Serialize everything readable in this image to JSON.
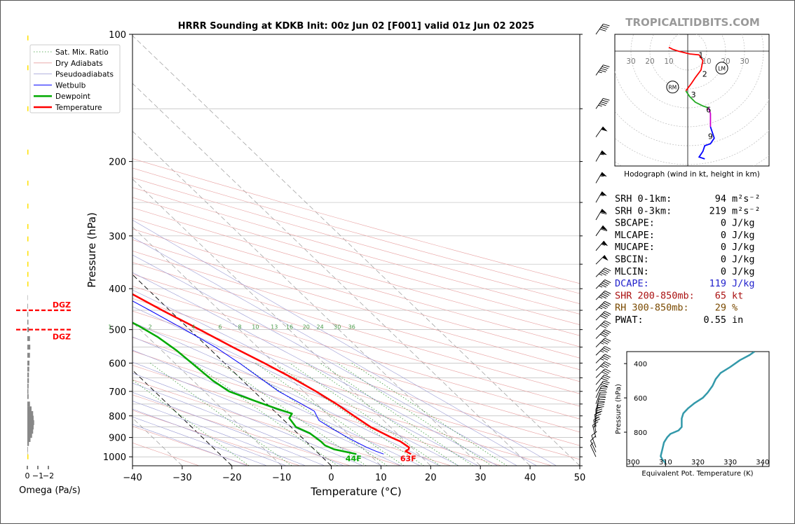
{
  "chart_data": {
    "type": "line",
    "title": "HRRR Sounding at KDKB Init: 00z Jun 02 [F001] valid 01z Jun 02 2025",
    "brand": "TROPICALTIDBITS.COM",
    "xlabel": "Temperature (°C)",
    "ylabel": "Pressure (hPa)",
    "xlim": [
      -40,
      50
    ],
    "ylim": [
      1050,
      100
    ],
    "x_ticks": [
      "−40",
      "−30",
      "−20",
      "−10",
      "0",
      "10",
      "20",
      "30",
      "40",
      "50"
    ],
    "x_tick_values": [
      -40,
      -30,
      -20,
      -10,
      0,
      10,
      20,
      30,
      40,
      50
    ],
    "y_ticks": [
      "100",
      "200",
      "300",
      "400",
      "500",
      "600",
      "700",
      "800",
      "900",
      "1000"
    ],
    "y_tick_values": [
      100,
      200,
      300,
      400,
      500,
      600,
      700,
      800,
      900,
      1000
    ],
    "mixing_ratio_labels": [
      "1",
      "2",
      "4",
      "6",
      "8",
      "10",
      "13",
      "16",
      "20",
      "24",
      "30",
      "36"
    ],
    "mixing_ratio_values": [
      1,
      2,
      4,
      6,
      8,
      10,
      13,
      16,
      20,
      24,
      30,
      36
    ],
    "legend": [
      "Sat. Mix. Ratio",
      "Dry Adiabats",
      "Pseudoadiabats",
      "Wetbulb",
      "Dewpoint",
      "Temperature"
    ],
    "surface_dewpoint_label": "44F",
    "surface_temp_label": "63F",
    "series": [
      {
        "name": "Temperature",
        "color": "#ff0000",
        "points": [
          [
            18.5,
            985
          ],
          [
            18,
            970
          ],
          [
            19,
            960
          ],
          [
            19.5,
            950
          ],
          [
            19,
            920
          ],
          [
            18,
            900
          ],
          [
            16,
            850
          ],
          [
            15,
            800
          ],
          [
            14,
            750
          ],
          [
            12.5,
            700
          ],
          [
            10.5,
            650
          ],
          [
            8,
            600
          ],
          [
            5,
            550
          ],
          [
            2,
            500
          ],
          [
            -1.5,
            450
          ],
          [
            -5,
            400
          ],
          [
            -9,
            350
          ],
          [
            -13,
            300
          ],
          [
            -16,
            270
          ],
          [
            -17,
            250
          ],
          [
            -16.5,
            230
          ],
          [
            -14.5,
            205
          ],
          [
            -12.5,
            185
          ],
          [
            -11,
            170
          ],
          [
            -9,
            150
          ],
          [
            -6,
            130
          ],
          [
            -3,
            115
          ],
          [
            0,
            100
          ]
        ]
      },
      {
        "name": "Dewpoint",
        "color": "#00aa00",
        "points": [
          [
            7.5,
            985
          ],
          [
            4,
            960
          ],
          [
            3,
            940
          ],
          [
            3,
            920
          ],
          [
            2.5,
            880
          ],
          [
            1,
            850
          ],
          [
            1.5,
            810
          ],
          [
            3,
            790
          ],
          [
            1,
            770
          ],
          [
            -2,
            735
          ],
          [
            -5,
            700
          ],
          [
            -6,
            660
          ],
          [
            -6.5,
            610
          ],
          [
            -7,
            560
          ],
          [
            -8,
            520
          ],
          [
            -9.5,
            490
          ],
          [
            -11.5,
            460
          ],
          [
            -12,
            430
          ],
          [
            -12,
            375
          ],
          [
            -14,
            350
          ],
          [
            -17,
            325
          ],
          [
            -18,
            300
          ],
          [
            -17.5,
            275
          ],
          [
            -19,
            252
          ],
          [
            -21,
            225
          ],
          [
            -22.5,
            205
          ],
          [
            -24,
            185
          ],
          [
            -25,
            165
          ],
          [
            -25.5,
            145
          ],
          [
            -25,
            130
          ],
          [
            -24,
            115
          ],
          [
            -22.5,
            100
          ]
        ]
      },
      {
        "name": "Wetbulb",
        "color": "#0000ff",
        "points": [
          [
            13,
            985
          ],
          [
            12,
            970
          ],
          [
            11,
            950
          ],
          [
            9.5,
            910
          ],
          [
            8,
            860
          ],
          [
            7,
            820
          ],
          [
            8,
            780
          ],
          [
            7,
            750
          ],
          [
            5,
            700
          ],
          [
            4,
            650
          ],
          [
            3,
            600
          ],
          [
            1.5,
            550
          ],
          [
            -1,
            500
          ],
          [
            -4,
            450
          ],
          [
            -7.5,
            400
          ],
          [
            -11,
            350
          ],
          [
            -15,
            300
          ],
          [
            -17,
            260
          ]
        ]
      }
    ]
  },
  "omega": {
    "xlabel": "Omega (Pa/s)",
    "x_ticks": [
      "0",
      "−1",
      "−2"
    ],
    "x_tick_values": [
      0,
      -1,
      -2
    ],
    "dgz_label": "DGZ",
    "dgz_pressures": [
      450,
      500
    ],
    "bars_gray": [
      [
        980,
        -0.03
      ],
      [
        960,
        -0.05
      ],
      [
        930,
        -0.15
      ],
      [
        910,
        -0.3
      ],
      [
        890,
        -0.45
      ],
      [
        870,
        -0.55
      ],
      [
        850,
        -0.6
      ],
      [
        830,
        -0.65
      ],
      [
        810,
        -0.6
      ],
      [
        790,
        -0.55
      ],
      [
        770,
        -0.4
      ],
      [
        750,
        -0.25
      ],
      [
        720,
        -0.12
      ],
      [
        700,
        -0.1
      ],
      [
        680,
        -0.12
      ],
      [
        660,
        -0.15
      ],
      [
        640,
        -0.15
      ],
      [
        620,
        -0.18
      ],
      [
        600,
        -0.2
      ],
      [
        575,
        -0.25
      ],
      [
        550,
        -0.28
      ],
      [
        525,
        -0.25
      ],
      [
        500,
        -0.15
      ],
      [
        480,
        -0.1
      ],
      [
        460,
        -0.08
      ],
      [
        440,
        -0.05
      ],
      [
        420,
        -0.03
      ]
    ],
    "bars_yellow": [
      [
        1000,
        0.03
      ],
      [
        390,
        0.05
      ],
      [
        370,
        0.06
      ],
      [
        350,
        0.08
      ],
      [
        330,
        0.09
      ],
      [
        305,
        0.08
      ],
      [
        285,
        0.06
      ],
      [
        255,
        0.04
      ],
      [
        225,
        0.02
      ],
      [
        190,
        0.02
      ],
      [
        150,
        0.03
      ],
      [
        120,
        0.05
      ],
      [
        102,
        0.04
      ]
    ]
  },
  "hodograph": {
    "caption": "Hodograph (wind in kt, height in km)",
    "ring_labels": [
      "30",
      "20",
      "10",
      "10",
      "20",
      "30"
    ],
    "ring_values": [
      -30,
      -20,
      -10,
      10,
      20,
      30
    ],
    "height_labels": [
      "1",
      "2",
      "3",
      "6",
      "9"
    ],
    "rm_label": "RM",
    "lm_label": "LM",
    "segments": [
      {
        "color": "#ff0000",
        "points": [
          [
            -10,
            2
          ],
          [
            -8,
            1
          ],
          [
            -5,
            0
          ],
          [
            1,
            -1.5
          ],
          [
            6,
            -2
          ],
          [
            8,
            -5
          ],
          [
            7,
            -10
          ],
          [
            4,
            -14
          ],
          [
            2,
            -17
          ],
          [
            -1,
            -21
          ]
        ]
      },
      {
        "color": "#22aa22",
        "points": [
          [
            -1,
            -21
          ],
          [
            1,
            -24
          ],
          [
            4,
            -27
          ],
          [
            8,
            -29
          ],
          [
            11,
            -30
          ]
        ]
      },
      {
        "color": "#cc00cc",
        "points": [
          [
            11,
            -30
          ],
          [
            12,
            -33
          ],
          [
            12,
            -37
          ],
          [
            12,
            -40
          ]
        ]
      },
      {
        "color": "#0000ff",
        "points": [
          [
            12,
            -40
          ],
          [
            13,
            -43
          ],
          [
            14,
            -46
          ],
          [
            12,
            -49
          ],
          [
            9,
            -50
          ],
          [
            8,
            -53
          ],
          [
            6,
            -56
          ],
          [
            9,
            -57
          ]
        ]
      }
    ],
    "label_points": [
      [
        7,
        -2
      ],
      [
        9,
        -12
      ],
      [
        3,
        -23
      ],
      [
        11,
        -31
      ],
      [
        12,
        -45
      ]
    ],
    "rm_point": [
      -8,
      -19
    ],
    "lm_point": [
      18,
      -9
    ]
  },
  "indices": [
    {
      "label": "SRH 0-1km:",
      "value": "94",
      "unit": "m²s⁻²",
      "color": "#000000"
    },
    {
      "label": "SRH 0-3km:",
      "value": "219",
      "unit": "m²s⁻²",
      "color": "#000000"
    },
    {
      "label": "SBCAPE:",
      "value": "0",
      "unit": "J/kg",
      "color": "#000000"
    },
    {
      "label": "MLCAPE:",
      "value": "0",
      "unit": "J/kg",
      "color": "#000000"
    },
    {
      "label": "MUCAPE:",
      "value": "0",
      "unit": "J/kg",
      "color": "#000000"
    },
    {
      "label": "SBCIN:",
      "value": "0",
      "unit": "J/kg",
      "color": "#000000"
    },
    {
      "label": "MLCIN:",
      "value": "0",
      "unit": "J/kg",
      "color": "#000000"
    },
    {
      "label": "DCAPE:",
      "value": "119",
      "unit": "J/kg",
      "color": "#2222cc"
    },
    {
      "label": "SHR 200-850mb:",
      "value": "65",
      "unit": "kt",
      "color": "#aa1111"
    },
    {
      "label": "RH 300-850mb:",
      "value": "29",
      "unit": "%",
      "color": "#7a4a00"
    },
    {
      "label": "PWAT:",
      "value": "0.55",
      "unit": "in",
      "color": "#000000"
    }
  ],
  "theta_e": {
    "xlabel": "Equivalent Pot. Temperature (K)",
    "ylabel": "Pressure (hPa)",
    "x_ticks": [
      "300",
      "310",
      "320",
      "330",
      "340"
    ],
    "x_tick_values": [
      300,
      310,
      320,
      330,
      340
    ],
    "y_ticks": [
      "400",
      "600",
      "800"
    ],
    "y_tick_values": [
      400,
      600,
      800
    ],
    "color": "#3399aa",
    "points": [
      [
        310,
        980
      ],
      [
        309,
        960
      ],
      [
        308.5,
        940
      ],
      [
        309,
        900
      ],
      [
        309.5,
        860
      ],
      [
        310.5,
        830
      ],
      [
        311.5,
        810
      ],
      [
        314,
        790
      ],
      [
        315,
        770
      ],
      [
        315,
        720
      ],
      [
        315.5,
        690
      ],
      [
        317,
        660
      ],
      [
        319,
        630
      ],
      [
        321.5,
        600
      ],
      [
        323,
        570
      ],
      [
        324.5,
        530
      ],
      [
        325.5,
        490
      ],
      [
        327,
        455
      ],
      [
        330,
        420
      ],
      [
        333,
        380
      ],
      [
        336,
        350
      ],
      [
        337.5,
        330
      ]
    ]
  }
}
